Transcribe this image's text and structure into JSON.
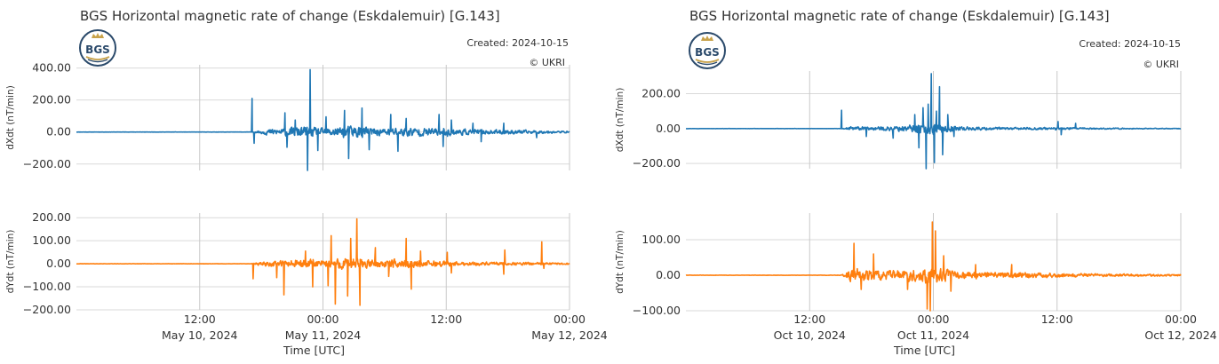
{
  "chart_data": [
    {
      "type": "line",
      "title": "BGS Horizontal magnetic rate of change (Eskdalemuir) [G.143]",
      "created": "Created: 2024-10-15",
      "copyright": "© UKRI",
      "logo_text": "BGS",
      "xlabel": "Time [UTC]",
      "x_ticks": [
        {
          "t": 12,
          "line1": "12:00",
          "line2": "May 10, 2024"
        },
        {
          "t": 24,
          "line1": "00:00",
          "line2": "May 11, 2024"
        },
        {
          "t": 36,
          "line1": "12:00",
          "line2": ""
        },
        {
          "t": 48,
          "line1": "00:00",
          "line2": "May 12, 2024"
        }
      ],
      "subplots": [
        {
          "ylabel": "dXdt (nT/min)",
          "ylim": [
            -240,
            420
          ],
          "y_ticks": [
            -200,
            0,
            200,
            400
          ],
          "y_tick_labels": [
            "−200.00",
            "0.00",
            "200.00",
            "400.00"
          ],
          "series": [
            {
              "color": "#1f77b4",
              "activity": [
                [
                  0,
                  0.8
                ],
                [
                  17,
                  0.8
                ],
                [
                  17.4,
                  6
                ],
                [
                  18.5,
                  22
                ],
                [
                  20,
                  28
                ],
                [
                  21,
                  35
                ],
                [
                  22,
                  45
                ],
                [
                  23,
                  38
                ],
                [
                  24,
                  28
                ],
                [
                  25,
                  36
                ],
                [
                  26,
                  45
                ],
                [
                  27,
                  52
                ],
                [
                  28,
                  42
                ],
                [
                  29,
                  32
                ],
                [
                  30,
                  28
                ],
                [
                  31,
                  36
                ],
                [
                  32,
                  40
                ],
                [
                  33,
                  36
                ],
                [
                  34,
                  30
                ],
                [
                  35,
                  32
                ],
                [
                  36,
                  34
                ],
                [
                  37,
                  26
                ],
                [
                  38,
                  22
                ],
                [
                  40,
                  18
                ],
                [
                  42,
                  18
                ],
                [
                  44,
                  14
                ],
                [
                  46,
                  10
                ],
                [
                  48,
                  6
                ]
              ],
              "spikes": [
                [
                  17.1,
                  210
                ],
                [
                  17.3,
                  -70
                ],
                [
                  20.3,
                  120
                ],
                [
                  20.5,
                  -95
                ],
                [
                  21.3,
                  75
                ],
                [
                  22.5,
                  -240
                ],
                [
                  22.75,
                  390
                ],
                [
                  23.5,
                  -115
                ],
                [
                  24.3,
                  95
                ],
                [
                  26.1,
                  135
                ],
                [
                  26.5,
                  -165
                ],
                [
                  27.8,
                  150
                ],
                [
                  28.5,
                  -110
                ],
                [
                  30.6,
                  110
                ],
                [
                  31.3,
                  -120
                ],
                [
                  32.1,
                  85
                ],
                [
                  35.3,
                  110
                ],
                [
                  35.7,
                  -90
                ],
                [
                  36.5,
                  75
                ],
                [
                  38.6,
                  55
                ],
                [
                  39.4,
                  -60
                ],
                [
                  41.6,
                  55
                ],
                [
                  44.8,
                  -35
                ]
              ]
            }
          ]
        },
        {
          "ylabel": "dYdt (nT/min)",
          "ylim": [
            -200,
            220
          ],
          "y_ticks": [
            -200,
            -100,
            0,
            100,
            200
          ],
          "y_tick_labels": [
            "−200.00",
            "−100.00",
            "0.00",
            "100.00",
            "200.00"
          ],
          "series": [
            {
              "color": "#ff7f0e",
              "activity": [
                [
                  0,
                  0.8
                ],
                [
                  17,
                  0.8
                ],
                [
                  17.4,
                  6
                ],
                [
                  18.5,
                  14
                ],
                [
                  20,
                  18
                ],
                [
                  21,
                  22
                ],
                [
                  22,
                  25
                ],
                [
                  23,
                  22
                ],
                [
                  24,
                  20
                ],
                [
                  25,
                  26
                ],
                [
                  26,
                  34
                ],
                [
                  27,
                  36
                ],
                [
                  28,
                  26
                ],
                [
                  29,
                  22
                ],
                [
                  30,
                  20
                ],
                [
                  31,
                  24
                ],
                [
                  32,
                  22
                ],
                [
                  33,
                  20
                ],
                [
                  34,
                  16
                ],
                [
                  35,
                  18
                ],
                [
                  36,
                  14
                ],
                [
                  38,
                  10
                ],
                [
                  40,
                  10
                ],
                [
                  42,
                  8
                ],
                [
                  44,
                  8
                ],
                [
                  46,
                  6
                ],
                [
                  48,
                  4
                ]
              ],
              "spikes": [
                [
                  17.2,
                  -65
                ],
                [
                  19.5,
                  -60
                ],
                [
                  20.2,
                  -135
                ],
                [
                  22.3,
                  55
                ],
                [
                  23.0,
                  -100
                ],
                [
                  24.5,
                  -95
                ],
                [
                  24.8,
                  122
                ],
                [
                  25.2,
                  -175
                ],
                [
                  26.4,
                  -140
                ],
                [
                  26.7,
                  110
                ],
                [
                  27.3,
                  195
                ],
                [
                  27.6,
                  -180
                ],
                [
                  29.1,
                  70
                ],
                [
                  30.4,
                  -55
                ],
                [
                  32.1,
                  110
                ],
                [
                  32.6,
                  -110
                ],
                [
                  33.5,
                  55
                ],
                [
                  36.1,
                  50
                ],
                [
                  36.5,
                  -40
                ],
                [
                  41.7,
                  60
                ],
                [
                  41.6,
                  -45
                ],
                [
                  45.3,
                  95
                ],
                [
                  45.5,
                  -20
                ]
              ]
            }
          ]
        }
      ]
    },
    {
      "type": "line",
      "title": "BGS Horizontal magnetic rate of change (Eskdalemuir) [G.143]",
      "created": "Created: 2024-10-15",
      "copyright": "© UKRI",
      "logo_text": "BGS",
      "xlabel": "Time [UTC]",
      "x_ticks": [
        {
          "t": 12,
          "line1": "12:00",
          "line2": "Oct 10, 2024"
        },
        {
          "t": 24,
          "line1": "00:00",
          "line2": "Oct 11, 2024"
        },
        {
          "t": 36,
          "line1": "12:00",
          "line2": ""
        },
        {
          "t": 48,
          "line1": "00:00",
          "line2": "Oct 12, 2024"
        }
      ],
      "subplots": [
        {
          "ylabel": "dXdt (nT/min)",
          "ylim": [
            -230,
            330
          ],
          "y_ticks": [
            -200,
            0,
            200
          ],
          "y_tick_labels": [
            "−200.00",
            "0.00",
            "200.00"
          ],
          "series": [
            {
              "color": "#1f77b4",
              "activity": [
                [
                  0,
                  0.6
                ],
                [
                  15,
                  0.6
                ],
                [
                  15.3,
                  4
                ],
                [
                  16,
                  14
                ],
                [
                  18,
                  12
                ],
                [
                  19,
                  14
                ],
                [
                  20,
                  18
                ],
                [
                  21,
                  22
                ],
                [
                  22,
                  30
                ],
                [
                  23,
                  38
                ],
                [
                  24,
                  45
                ],
                [
                  25,
                  30
                ],
                [
                  26,
                  20
                ],
                [
                  27,
                  14
                ],
                [
                  28,
                  12
                ],
                [
                  30,
                  10
                ],
                [
                  32,
                  8
                ],
                [
                  36,
                  10
                ],
                [
                  38,
                  6
                ],
                [
                  40,
                  5
                ],
                [
                  44,
                  3
                ],
                [
                  48,
                  2
                ]
              ],
              "spikes": [
                [
                  15.1,
                  105
                ],
                [
                  17.5,
                  -45
                ],
                [
                  20.1,
                  -55
                ],
                [
                  22.2,
                  80
                ],
                [
                  22.6,
                  -110
                ],
                [
                  23.0,
                  120
                ],
                [
                  23.3,
                  -230
                ],
                [
                  23.5,
                  140
                ],
                [
                  23.8,
                  315
                ],
                [
                  24.1,
                  -195
                ],
                [
                  24.3,
                  100
                ],
                [
                  24.6,
                  240
                ],
                [
                  24.9,
                  -150
                ],
                [
                  25.4,
                  80
                ],
                [
                  26.0,
                  -45
                ],
                [
                  36.1,
                  40
                ],
                [
                  36.4,
                  -35
                ],
                [
                  37.8,
                  30
                ]
              ]
            }
          ]
        },
        {
          "ylabel": "dYdt (nT/min)",
          "ylim": [
            -100,
            175
          ],
          "y_ticks": [
            -100,
            0,
            100
          ],
          "y_tick_labels": [
            "−100.00",
            "0.00",
            "100.00"
          ],
          "series": [
            {
              "color": "#ff7f0e",
              "activity": [
                [
                  0,
                  0.5
                ],
                [
                  15,
                  0.5
                ],
                [
                  15.3,
                  5
                ],
                [
                  16,
                  22
                ],
                [
                  17,
                  26
                ],
                [
                  18,
                  22
                ],
                [
                  19,
                  18
                ],
                [
                  20,
                  16
                ],
                [
                  21,
                  18
                ],
                [
                  22,
                  22
                ],
                [
                  23,
                  28
                ],
                [
                  24,
                  32
                ],
                [
                  25,
                  22
                ],
                [
                  26,
                  16
                ],
                [
                  27,
                  12
                ],
                [
                  28,
                  12
                ],
                [
                  30,
                  10
                ],
                [
                  32,
                  10
                ],
                [
                  36,
                  8
                ],
                [
                  38,
                  6
                ],
                [
                  40,
                  5
                ],
                [
                  44,
                  4
                ],
                [
                  48,
                  3
                ]
              ],
              "spikes": [
                [
                  16.3,
                  90
                ],
                [
                  17.0,
                  -40
                ],
                [
                  18.2,
                  60
                ],
                [
                  21.5,
                  -40
                ],
                [
                  23.4,
                  -95
                ],
                [
                  23.7,
                  -100
                ],
                [
                  23.9,
                  150
                ],
                [
                  24.2,
                  125
                ],
                [
                  25.0,
                  55
                ],
                [
                  25.7,
                  -45
                ],
                [
                  28.1,
                  30
                ],
                [
                  31.6,
                  30
                ]
              ]
            }
          ]
        }
      ]
    }
  ]
}
